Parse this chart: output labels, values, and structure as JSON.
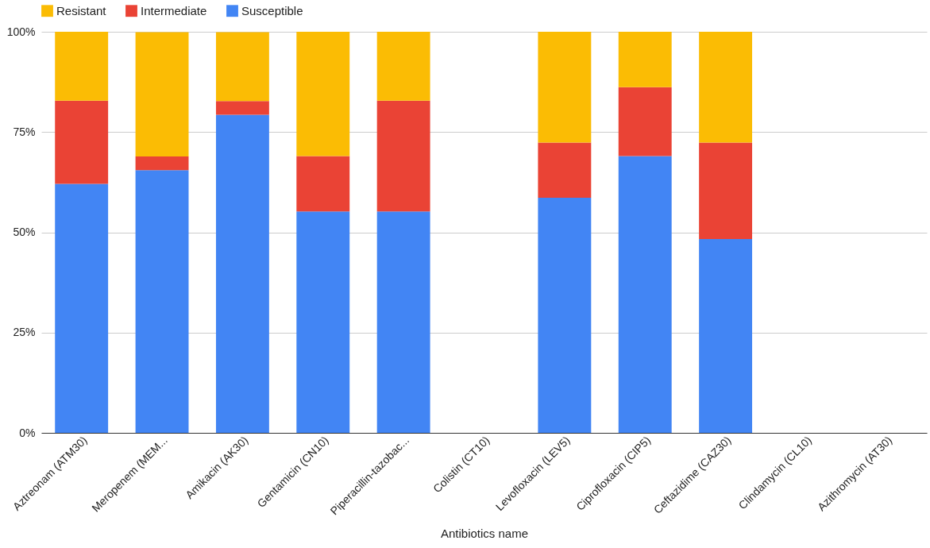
{
  "chart_data": {
    "type": "bar",
    "stacked": true,
    "xlabel": "Antibiotics name",
    "categories": [
      "Aztreonam (ATM30)",
      "Meropenem (MEM...",
      "Amikacin (AK30)",
      "Gentamicin (CN10)",
      "Piperacillin-tazobac...",
      "Colistin (CT10)",
      "Levofloxacin (LEV5)",
      "Ciprofloxacin (CIP5)",
      "Ceftazidime (CAZ30)",
      "Clindamycin (CL10)",
      "Azithromycin (AT30)"
    ],
    "series": [
      {
        "name": "Susceptible",
        "color": "#4285f4",
        "values": [
          62.1,
          65.5,
          79.3,
          55.2,
          55.2,
          null,
          58.6,
          69.0,
          48.3,
          null,
          null
        ]
      },
      {
        "name": "Intermediate",
        "color": "#ea4335",
        "values": [
          20.7,
          3.4,
          3.4,
          13.8,
          27.6,
          null,
          13.8,
          17.2,
          24.1,
          null,
          null
        ]
      },
      {
        "name": "Resistant",
        "color": "#fbbc04",
        "values": [
          17.2,
          31.0,
          17.2,
          31.0,
          17.2,
          null,
          27.6,
          13.8,
          27.6,
          null,
          null
        ]
      }
    ],
    "ylim": [
      0,
      100
    ],
    "yticks": [
      {
        "value": 0,
        "label": "0%"
      },
      {
        "value": 25,
        "label": "25%"
      },
      {
        "value": 50,
        "label": "50%"
      },
      {
        "value": 75,
        "label": "75%"
      },
      {
        "value": 100,
        "label": "100%"
      }
    ],
    "grid": "y",
    "legend": "top"
  }
}
